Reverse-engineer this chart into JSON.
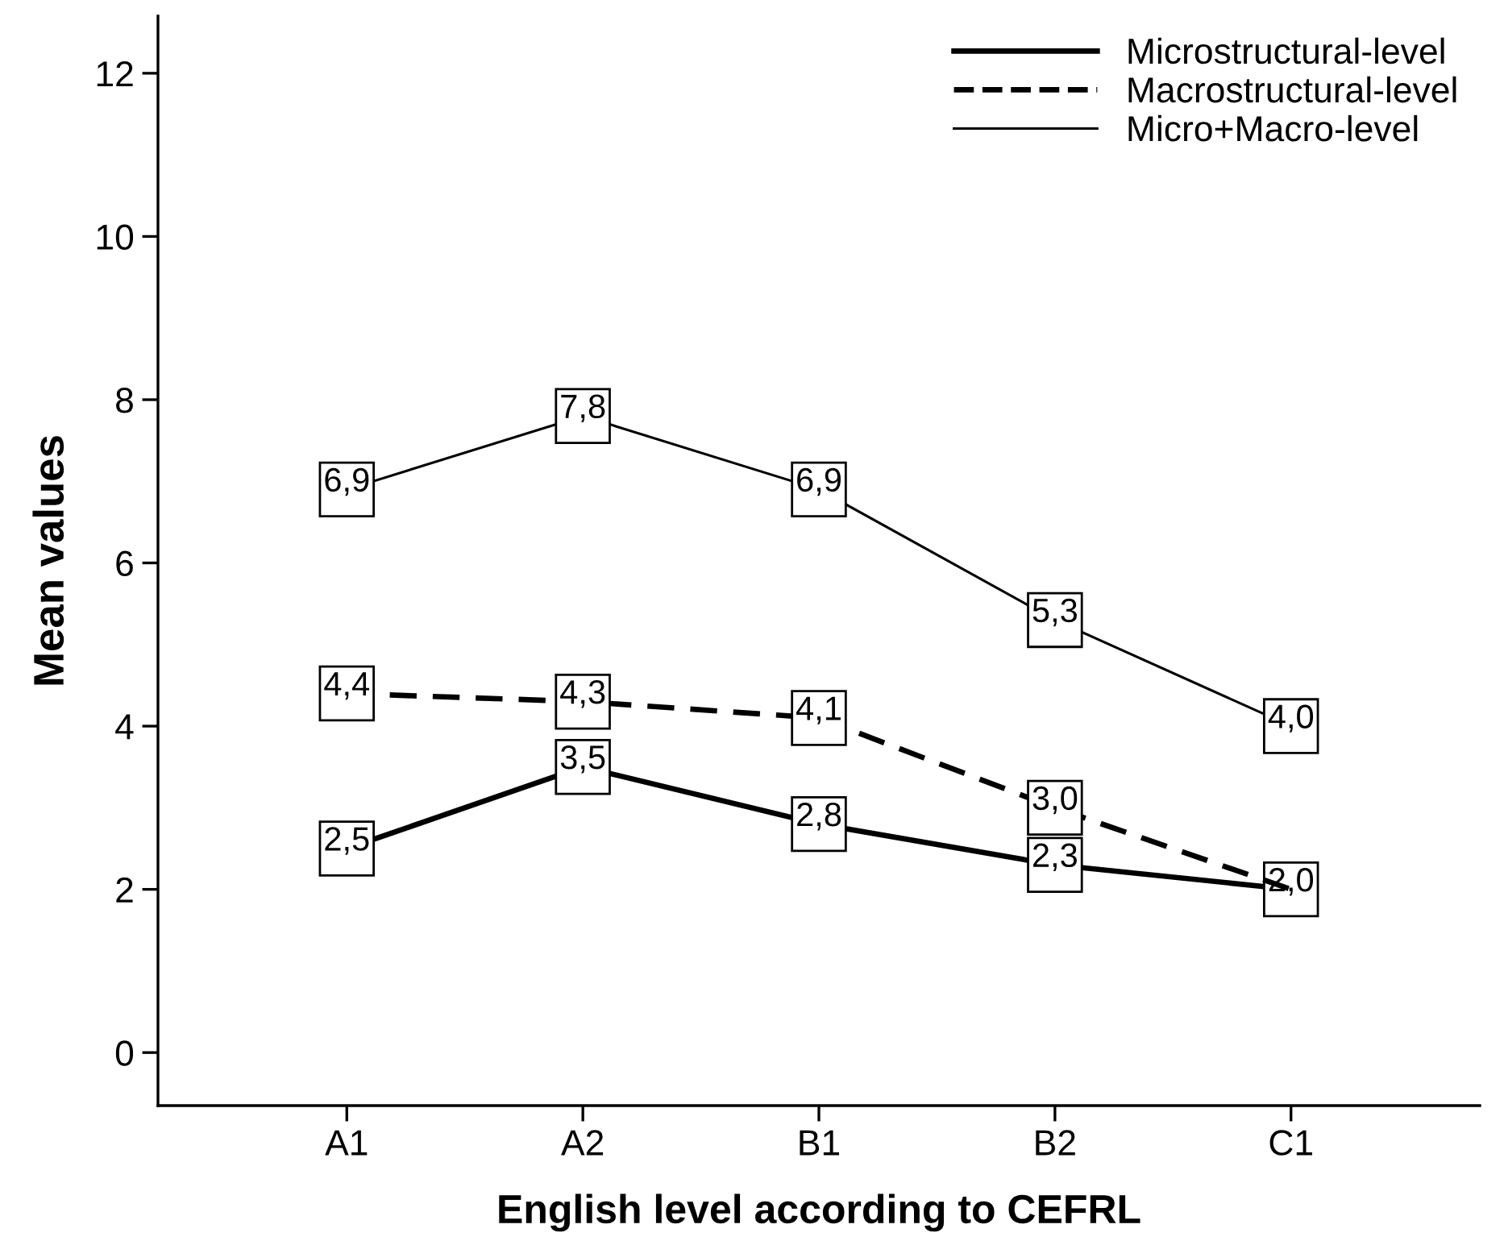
{
  "chart_data": {
    "type": "line",
    "xlabel": "English level according to CEFRL",
    "ylabel": "Mean values",
    "categories": [
      "A1",
      "A2",
      "B1",
      "B2",
      "C1"
    ],
    "series": [
      {
        "name": "Microstructural-level",
        "color": "#000000",
        "line_style": "solid",
        "values": [
          2.5,
          3.5,
          2.8,
          2.3,
          2.0
        ],
        "value_labels": [
          "2,5",
          "3,5",
          "2,8",
          "2,3",
          "2,0"
        ]
      },
      {
        "name": "Macrostructural-level",
        "color": "#000000",
        "line_style": "dashed",
        "values": [
          4.4,
          4.3,
          4.1,
          3.0,
          2.0
        ],
        "value_labels": [
          "4,4",
          "4,3",
          "4,1",
          "3,0",
          null
        ]
      },
      {
        "name": "Micro+Macro-level",
        "color": "#000000",
        "line_style": "solid",
        "values": [
          6.9,
          7.8,
          6.9,
          5.3,
          4.0
        ],
        "value_labels": [
          "6,9",
          "7,8",
          "6,9",
          "5,3",
          "4,0"
        ]
      }
    ],
    "ylim": [
      -0.65,
      12.7
    ],
    "yticks": [
      0,
      2,
      4,
      6,
      8,
      10,
      12
    ],
    "grid": false,
    "legend": "top right",
    "marker": "square"
  }
}
